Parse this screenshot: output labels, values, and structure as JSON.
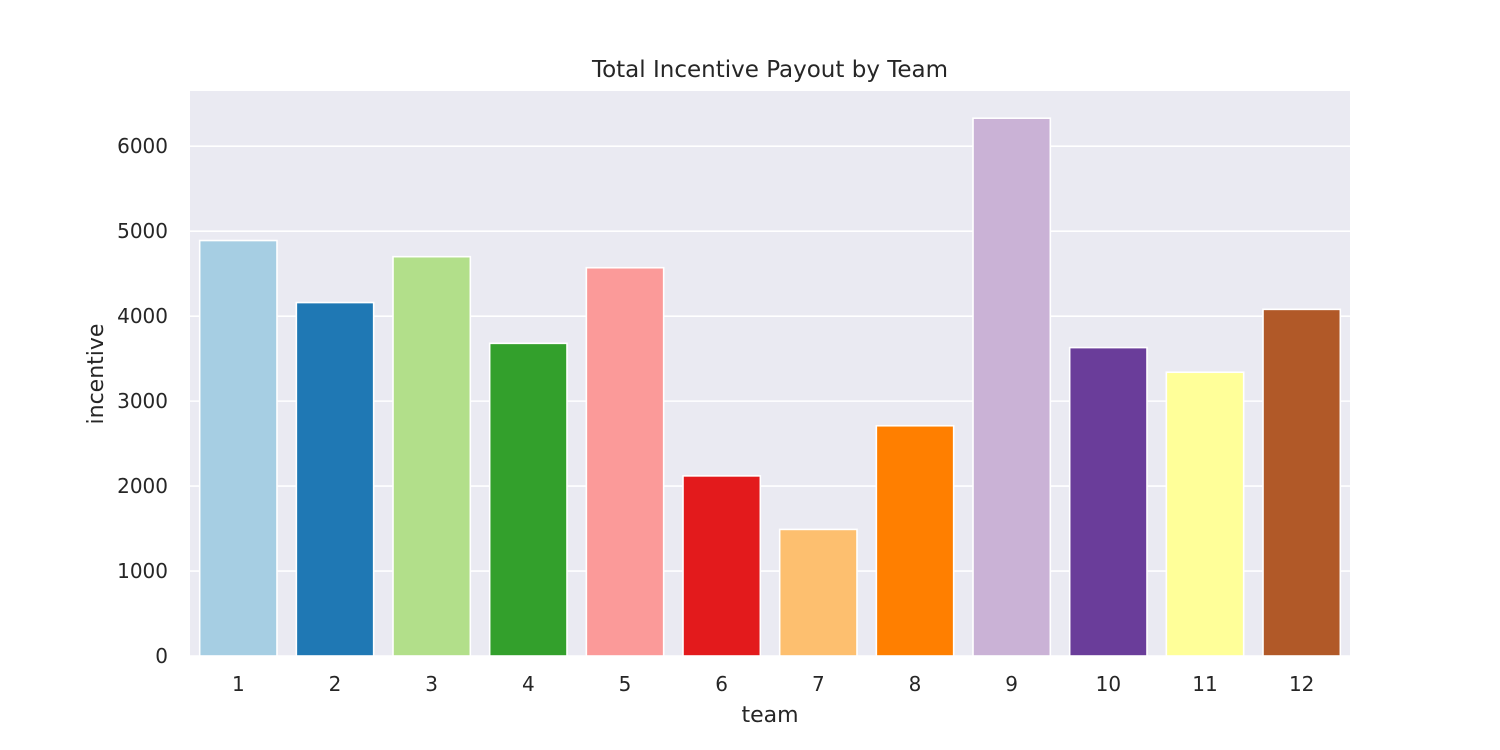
{
  "chart_data": {
    "type": "bar",
    "title": "Total Incentive Payout by Team",
    "xlabel": "team",
    "ylabel": "incentive",
    "categories": [
      "1",
      "2",
      "3",
      "4",
      "5",
      "6",
      "7",
      "8",
      "9",
      "10",
      "11",
      "12"
    ],
    "values": [
      4890,
      4160,
      4700,
      3680,
      4570,
      2120,
      1490,
      2710,
      6330,
      3630,
      3340,
      4080
    ],
    "colors": [
      "#a6cee3",
      "#1f78b4",
      "#b2df8a",
      "#33a02c",
      "#fb9a99",
      "#e31a1c",
      "#fdbf6f",
      "#ff7f00",
      "#cab2d6",
      "#6a3d9a",
      "#ffff99",
      "#b15928"
    ],
    "ylim": [
      0,
      6650
    ],
    "yticks": [
      0,
      1000,
      2000,
      3000,
      4000,
      5000,
      6000
    ],
    "ytick_labels": [
      "0",
      "1000",
      "2000",
      "3000",
      "4000",
      "5000",
      "6000"
    ],
    "grid": true,
    "legend": "none",
    "style": "seaborn-darkgrid"
  }
}
